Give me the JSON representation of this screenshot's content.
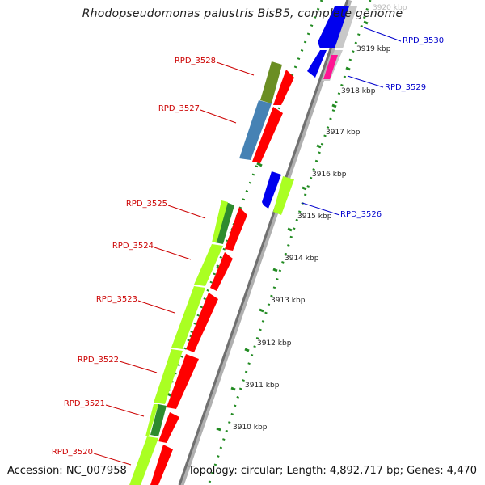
{
  "title": "Rhodopseudomonas palustris BisB5, complete genome",
  "accession": "Accession: NC_007958",
  "summary": "Topology: circular; Length: 4,892,717 bp; Genes: 4,470",
  "colors": {
    "forward_label": "#cc0000",
    "reverse_label": "#0000cc",
    "backbone": "#888888",
    "tick": "#228b22",
    "feature_red": "#ff0000",
    "feature_blue": "#0000ee",
    "feature_lime": "#aaff22",
    "feature_darkgreen": "#2e8b2e",
    "feature_olive": "#6b8e23",
    "feature_steelblue": "#4682b4",
    "feature_magenta": "#ff1493",
    "feature_grey": "#c8c8c8"
  },
  "scale_labels": [
    "3920 kbp",
    "3919 kbp",
    "3918 kbp",
    "3917 kbp",
    "3916 kbp",
    "3915 kbp",
    "3914 kbp",
    "3913 kbp",
    "3912 kbp",
    "3911 kbp",
    "3910 kbp"
  ],
  "genes_forward": [
    "RPD_3528",
    "RPD_3527",
    "RPD_3525",
    "RPD_3524",
    "RPD_3523",
    "RPD_3522",
    "RPD_3521",
    "RPD_3520"
  ],
  "genes_reverse": [
    "RPD_3530",
    "RPD_3529",
    "RPD_3526"
  ]
}
